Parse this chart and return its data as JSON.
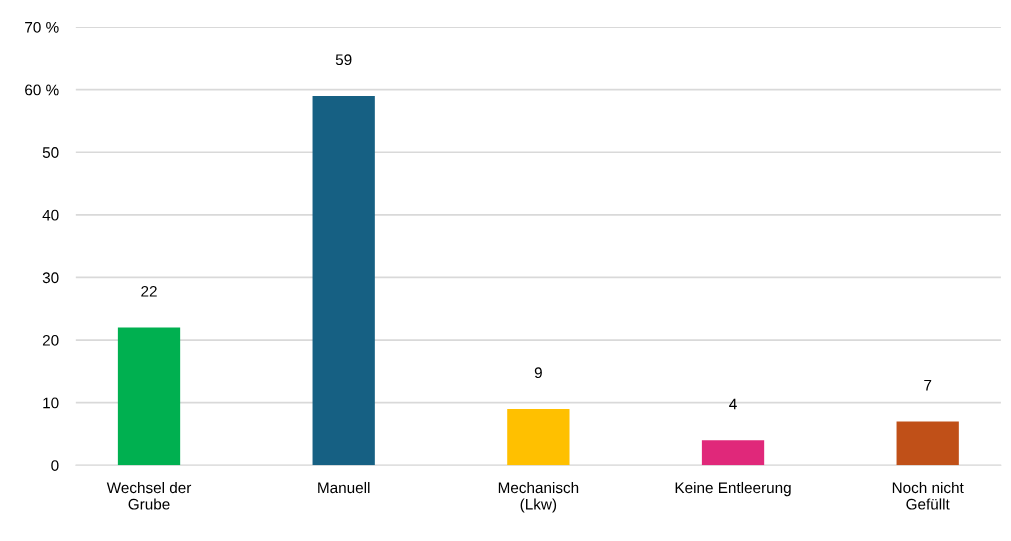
{
  "chart_data": {
    "type": "bar",
    "categories": [
      "Wechsel der\nGrube",
      "Manuell",
      "Mechanisch\n(Lkw)",
      "Keine Entleerung",
      "Noch nicht\nGefüllt"
    ],
    "values": [
      22,
      59,
      9,
      4,
      7
    ],
    "colors": [
      "#00b050",
      "#166083",
      "#ffc000",
      "#e0287a",
      "#c05018"
    ],
    "ylim": [
      0,
      70
    ],
    "yticks": [
      0,
      10,
      20,
      30,
      40,
      50,
      {
        "value": 60,
        "label": "60 %"
      },
      {
        "value": 70,
        "label": "70 %"
      }
    ],
    "grid": "y",
    "data_labels": true
  }
}
